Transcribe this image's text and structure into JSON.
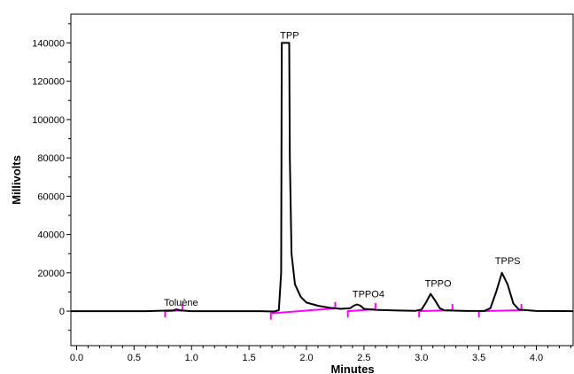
{
  "chart_data": {
    "type": "line",
    "xlabel": "Minutes",
    "ylabel": "Millivolts",
    "xlim": [
      -0.05,
      4.32
    ],
    "ylim": [
      -18000,
      155000
    ],
    "x_ticks": [
      0.0,
      0.5,
      1.0,
      1.5,
      2.0,
      2.5,
      3.0,
      3.5,
      4.0
    ],
    "x_tick_labels": [
      "0.0",
      "0.5",
      "1.0",
      "1.5",
      "2.0",
      "2.5",
      "3.0",
      "3.5",
      "4.0"
    ],
    "y_ticks": [
      0,
      20000,
      40000,
      60000,
      80000,
      100000,
      120000,
      140000
    ],
    "y_tick_labels": [
      "0",
      "20000",
      "40000",
      "60000",
      "80000",
      "100000",
      "120000",
      "140000"
    ],
    "grid": false,
    "trace_color": "#000000",
    "baseline_color": "#ff00ff",
    "trace_points": [
      [
        -0.05,
        0
      ],
      [
        0.6,
        0
      ],
      [
        0.84,
        400
      ],
      [
        0.87,
        900
      ],
      [
        0.9,
        400
      ],
      [
        1.0,
        0
      ],
      [
        1.6,
        0
      ],
      [
        1.72,
        -200
      ],
      [
        1.76,
        500
      ],
      [
        1.78,
        20000
      ],
      [
        1.785,
        140000
      ],
      [
        1.85,
        140000
      ],
      [
        1.855,
        80000
      ],
      [
        1.87,
        30000
      ],
      [
        1.9,
        14000
      ],
      [
        1.95,
        7500
      ],
      [
        2.0,
        4500
      ],
      [
        2.1,
        2800
      ],
      [
        2.2,
        1800
      ],
      [
        2.3,
        1200
      ],
      [
        2.38,
        1500
      ],
      [
        2.41,
        2800
      ],
      [
        2.44,
        3500
      ],
      [
        2.47,
        2800
      ],
      [
        2.5,
        1200
      ],
      [
        2.6,
        700
      ],
      [
        2.8,
        300
      ],
      [
        2.95,
        200
      ],
      [
        3.0,
        800
      ],
      [
        3.04,
        4500
      ],
      [
        3.08,
        9000
      ],
      [
        3.12,
        5500
      ],
      [
        3.16,
        1500
      ],
      [
        3.2,
        400
      ],
      [
        3.4,
        100
      ],
      [
        3.55,
        200
      ],
      [
        3.6,
        1500
      ],
      [
        3.65,
        10000
      ],
      [
        3.7,
        20000
      ],
      [
        3.75,
        14000
      ],
      [
        3.8,
        4000
      ],
      [
        3.85,
        800
      ],
      [
        4.0,
        100
      ],
      [
        4.32,
        0
      ]
    ],
    "baselines": [
      {
        "x": [
          0.77,
          0.92
        ],
        "y": [
          0,
          400
        ]
      },
      {
        "x": [
          1.69,
          2.25
        ],
        "y": [
          -1200,
          1500
        ]
      },
      {
        "x": [
          2.36,
          2.6
        ],
        "y": [
          0,
          1000
        ]
      },
      {
        "x": [
          2.98,
          3.27
        ],
        "y": [
          0,
          500
        ]
      },
      {
        "x": [
          3.5,
          3.87
        ],
        "y": [
          0,
          500
        ]
      }
    ],
    "peaks": [
      {
        "name": "Toluène",
        "x": 0.87,
        "y": 900
      },
      {
        "name": "TPP",
        "x": 1.82,
        "y": 140000
      },
      {
        "name": "TPPO4",
        "x": 2.44,
        "y": 3500
      },
      {
        "name": "TPPO",
        "x": 3.08,
        "y": 9000
      },
      {
        "name": "TPPS",
        "x": 3.7,
        "y": 20000
      }
    ]
  }
}
